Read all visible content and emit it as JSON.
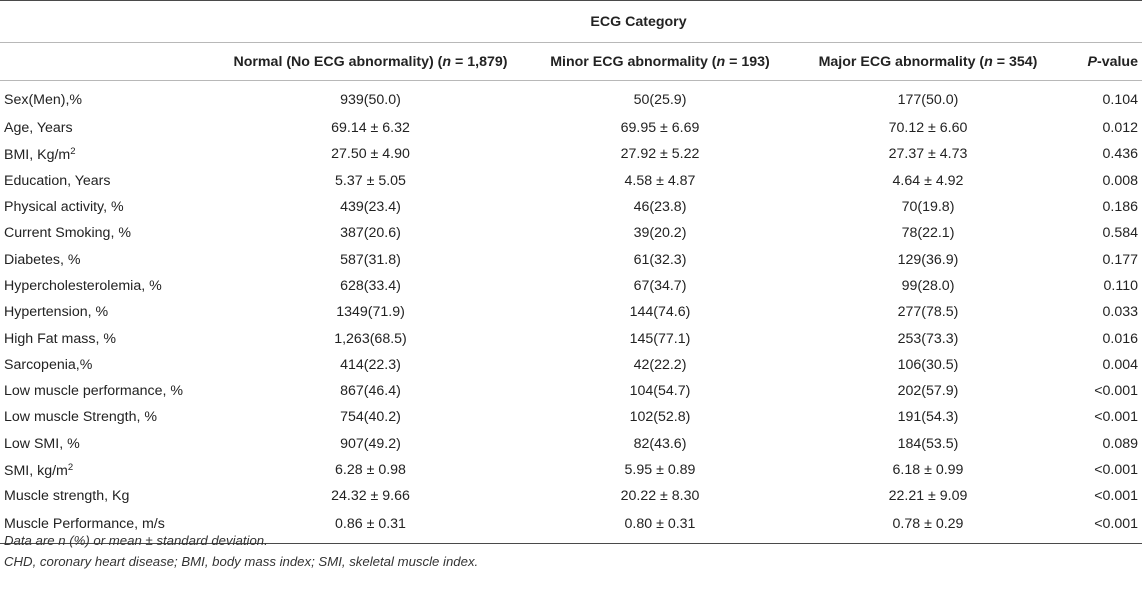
{
  "header": {
    "group_label": "ECG Category",
    "columns": {
      "normal_prefix": "Normal (No ECG abnormality) (",
      "minor_prefix": "Minor ECG abnormality (",
      "major_prefix": "Major ECG abnormality (",
      "n_symbol": "n",
      "normal_n": " = 1,879)",
      "minor_n": " = 193)",
      "major_n": " = 354)",
      "p_symbol": "P",
      "p_suffix": "-value"
    }
  },
  "rows": [
    {
      "label": "Sex(Men),%",
      "normal": "939(50.0)",
      "minor": "50(25.9)",
      "major": "177(50.0)",
      "p": "0.104"
    },
    {
      "label": "Age, Years",
      "normal": "69.14 ± 6.32",
      "minor": "69.95 ± 6.69",
      "major": "70.12 ± 6.60",
      "p": "0.012"
    },
    {
      "label": "BMI, Kg/m",
      "label_sup": "2",
      "normal": "27.50 ± 4.90",
      "minor": "27.92 ± 5.22",
      "major": "27.37 ± 4.73",
      "p": "0.436"
    },
    {
      "label": "Education, Years",
      "normal": "5.37 ± 5.05",
      "minor": "4.58 ± 4.87",
      "major": "4.64 ± 4.92",
      "p": "0.008"
    },
    {
      "label": "Physical activity, %",
      "normal": "439(23.4)",
      "minor": "46(23.8)",
      "major": "70(19.8)",
      "p": "0.186"
    },
    {
      "label": "Current Smoking, %",
      "normal": "387(20.6)",
      "minor": "39(20.2)",
      "major": "78(22.1)",
      "p": "0.584"
    },
    {
      "label": "Diabetes, %",
      "normal": "587(31.8)",
      "minor": "61(32.3)",
      "major": "129(36.9)",
      "p": "0.177"
    },
    {
      "label": "Hypercholesterolemia, %",
      "normal": "628(33.4)",
      "minor": "67(34.7)",
      "major": "99(28.0)",
      "p": "0.110"
    },
    {
      "label": "Hypertension, %",
      "normal": "1349(71.9)",
      "minor": "144(74.6)",
      "major": "277(78.5)",
      "p": "0.033"
    },
    {
      "label": "High Fat mass, %",
      "normal": "1,263(68.5)",
      "minor": "145(77.1)",
      "major": "253(73.3)",
      "p": "0.016"
    },
    {
      "label": "Sarcopenia,%",
      "normal": "414(22.3)",
      "minor": "42(22.2)",
      "major": "106(30.5)",
      "p": "0.004"
    },
    {
      "label": "Low muscle performance, %",
      "normal": "867(46.4)",
      "minor": "104(54.7)",
      "major": "202(57.9)",
      "p": "<0.001"
    },
    {
      "label": "Low muscle Strength, %",
      "normal": "754(40.2)",
      "minor": "102(52.8)",
      "major": "191(54.3)",
      "p": "<0.001"
    },
    {
      "label": "Low SMI, %",
      "normal": "907(49.2)",
      "minor": "82(43.6)",
      "major": "184(53.5)",
      "p": "0.089"
    },
    {
      "label": "SMI, kg/m",
      "label_sup": "2",
      "normal": "6.28 ± 0.98",
      "minor": "5.95 ± 0.89",
      "major": "6.18 ± 0.99",
      "p": "<0.001"
    },
    {
      "label": "Muscle strength, Kg",
      "normal": "24.32 ± 9.66",
      "minor": "20.22 ± 8.30",
      "major": "22.21 ± 9.09",
      "p": "<0.001"
    },
    {
      "label": "Muscle Performance, m/s",
      "normal": "0.86 ± 0.31",
      "minor": "0.80 ± 0.31",
      "major": "0.78 ± 0.29",
      "p": "<0.001"
    }
  ],
  "footnotes": {
    "line1": "Data are n (%) or mean ± standard deviation.",
    "line2": "CHD, coronary heart disease; BMI, body mass index; SMI, skeletal muscle index."
  }
}
